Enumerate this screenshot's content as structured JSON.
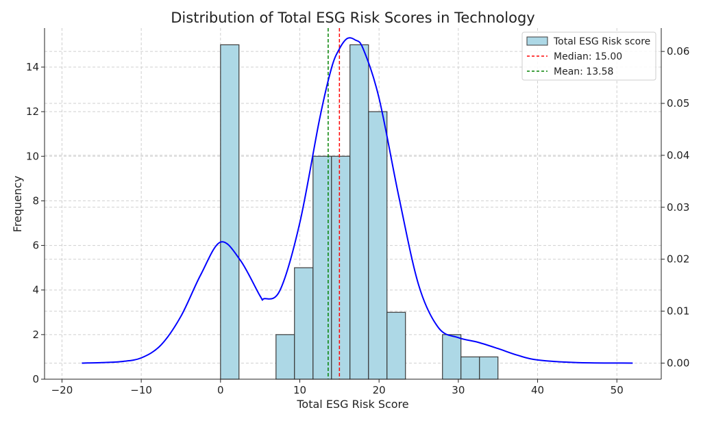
{
  "chart_data": {
    "type": "bar",
    "title": "Distribution of Total ESG Risk Scores in Technology",
    "xlabel": "Total ESG Risk Score",
    "ylabel": "Frequency",
    "xlim": [
      -22.2,
      55.6
    ],
    "ylim": [
      0,
      15.75
    ],
    "y2lim": [
      -0.0031,
      0.0645
    ],
    "xticks": [
      "−20",
      "−10",
      "0",
      "10",
      "20",
      "30",
      "40",
      "50"
    ],
    "xtick_values": [
      -20,
      -10,
      0,
      10,
      20,
      30,
      40,
      50
    ],
    "yticks": [
      "0",
      "2",
      "4",
      "6",
      "8",
      "10",
      "12",
      "14"
    ],
    "ytick_values": [
      0,
      2,
      4,
      6,
      8,
      10,
      12,
      14
    ],
    "y2ticks": [
      "0.00",
      "0.01",
      "0.02",
      "0.03",
      "0.04",
      "0.05",
      "0.06"
    ],
    "y2tick_values": [
      0,
      0.01,
      0.02,
      0.03,
      0.04,
      0.05,
      0.06
    ],
    "grid": true,
    "legend_position": "top-right",
    "histogram": {
      "name": "Total ESG Risk score",
      "bins": [
        {
          "x0": 0.0,
          "x1": 2.33,
          "count": 15
        },
        {
          "x0": 2.33,
          "x1": 4.67,
          "count": 0
        },
        {
          "x0": 4.67,
          "x1": 7.0,
          "count": 0
        },
        {
          "x0": 7.0,
          "x1": 9.33,
          "count": 2
        },
        {
          "x0": 9.33,
          "x1": 11.67,
          "count": 5
        },
        {
          "x0": 11.67,
          "x1": 14.0,
          "count": 10
        },
        {
          "x0": 14.0,
          "x1": 16.33,
          "count": 10
        },
        {
          "x0": 16.33,
          "x1": 18.67,
          "count": 15
        },
        {
          "x0": 18.67,
          "x1": 21.0,
          "count": 12
        },
        {
          "x0": 21.0,
          "x1": 23.33,
          "count": 3
        },
        {
          "x0": 23.33,
          "x1": 25.67,
          "count": 0
        },
        {
          "x0": 25.67,
          "x1": 28.0,
          "count": 0
        },
        {
          "x0": 28.0,
          "x1": 30.33,
          "count": 2
        },
        {
          "x0": 30.33,
          "x1": 32.67,
          "count": 1
        },
        {
          "x0": 32.67,
          "x1": 35.0,
          "count": 1
        }
      ]
    },
    "kde": {
      "x": [
        -17.5,
        -15,
        -12.5,
        -10,
        -7.5,
        -5,
        -2.5,
        0,
        2.5,
        5,
        5.5,
        7.5,
        10,
        12.5,
        14,
        15,
        16,
        17,
        18,
        20,
        22.5,
        25,
        27.5,
        30,
        32.5,
        35,
        37.5,
        40,
        45,
        52
      ],
      "y": [
        0.0,
        0.0001,
        0.0003,
        0.001,
        0.0035,
        0.009,
        0.017,
        0.0233,
        0.0198,
        0.0129,
        0.0124,
        0.014,
        0.027,
        0.047,
        0.0568,
        0.0605,
        0.0625,
        0.0622,
        0.0605,
        0.051,
        0.032,
        0.015,
        0.0068,
        0.0049,
        0.004,
        0.0028,
        0.0015,
        0.0006,
        0.0001,
        0.0
      ]
    },
    "median": {
      "value": 15.0,
      "label": "Median: 15.00",
      "color": "#ff0000"
    },
    "mean": {
      "value": 13.58,
      "label": "Mean: 13.58",
      "color": "#008000"
    },
    "colors": {
      "bar_fill": "#add8e6",
      "bar_edge": "#3a3a3a",
      "kde": "#0000ff",
      "grid": "#cfcfcf"
    }
  }
}
